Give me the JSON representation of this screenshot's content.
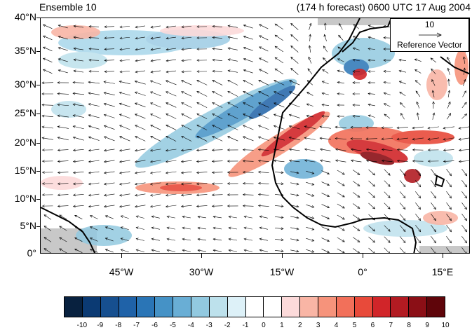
{
  "header": {
    "left_title": "Ensemble 10",
    "right_title": "(174 h forecast) 0600 UTC 17 Aug 2004"
  },
  "map": {
    "lat_labels": [
      "40°N",
      "35°N",
      "30°N",
      "25°N",
      "20°N",
      "15°N",
      "10°N",
      "5°N",
      "0°"
    ],
    "lon_labels": [
      "45°W",
      "30°W",
      "15°W",
      "0°",
      "15°E"
    ],
    "land_mask_color": "#c8c8c8",
    "coast_color": "#000000"
  },
  "reference_vector": {
    "value": "10",
    "label": "Reference Vector"
  },
  "colorbar": {
    "labels": [
      "-10",
      "-9",
      "-8",
      "-7",
      "-6",
      "-5",
      "-4",
      "-3",
      "-2",
      "-1",
      "0",
      "1",
      "2",
      "3",
      "4",
      "5",
      "6",
      "7",
      "8",
      "9",
      "10"
    ],
    "colors": [
      "#08213f",
      "#0b3a73",
      "#164f8f",
      "#1f62a8",
      "#2a75b6",
      "#4592c6",
      "#69aed5",
      "#92c9e0",
      "#bde1ec",
      "#ddf1f8",
      "#ffffff",
      "#ffffff",
      "#fcdada",
      "#f9b5a5",
      "#f6937b",
      "#f2705a",
      "#e84a3a",
      "#d12529",
      "#b21b22",
      "#8b0f16",
      "#5f050a"
    ]
  }
}
